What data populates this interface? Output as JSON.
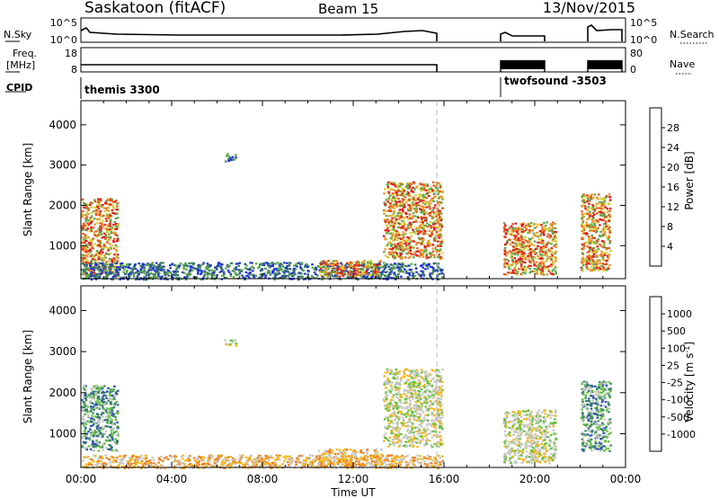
{
  "header": {
    "station": "Saskatoon (fitACF)",
    "beam": "Beam 15",
    "date": "13/Nov/2015"
  },
  "strip_nsky": {
    "label": "N.Sky",
    "right_label": "N.Search",
    "left_ticks": [
      "10^5",
      "10^0"
    ],
    "right_ticks": [
      "10^5",
      "10^0"
    ]
  },
  "strip_freq": {
    "label_line1": "Freq.",
    "label_line2": "[MHz]",
    "right_label": "Nave",
    "left_ticks": [
      "18",
      "8"
    ],
    "right_ticks": [
      "80",
      "0"
    ]
  },
  "cpid": {
    "label": "CPID",
    "modes": [
      {
        "name": "themis 3300",
        "start": 0.0
      },
      {
        "name": "twofsound -3503",
        "start": 18.6
      }
    ]
  },
  "chart_data": [
    {
      "type": "heatmap",
      "title": "",
      "xlabel": "",
      "ylabel": "Slant Range [km]",
      "ylim": [
        180,
        4600
      ],
      "yticks": [
        1000,
        2000,
        3000,
        4000
      ],
      "xlim": [
        0,
        24
      ],
      "colorbar": {
        "label": "Power [dB]",
        "ticks": [
          "4",
          "8",
          "12",
          "16",
          "20",
          "24",
          "28"
        ],
        "colors": [
          "#1c2fe0",
          "#2a4f9e",
          "#3e7f5e",
          "#5ca94a",
          "#d6cf35",
          "#ee9428",
          "#e05a1c",
          "#e01818"
        ]
      },
      "echo_regions": [
        {
          "t0": 0.0,
          "t1": 1.6,
          "r0": 300,
          "r1": 2200,
          "level": "high"
        },
        {
          "t0": 0.0,
          "t1": 15.9,
          "r0": 180,
          "r1": 600,
          "level": "low"
        },
        {
          "t0": 10.4,
          "t1": 13.2,
          "r0": 250,
          "r1": 650,
          "level": "high"
        },
        {
          "t0": 13.3,
          "t1": 15.9,
          "r0": 700,
          "r1": 2600,
          "level": "high"
        },
        {
          "t0": 6.3,
          "t1": 6.8,
          "r0": 3100,
          "r1": 3300,
          "level": "low"
        },
        {
          "t0": 18.6,
          "t1": 20.9,
          "r0": 300,
          "r1": 1600,
          "level": "high"
        },
        {
          "t0": 22.0,
          "t1": 23.3,
          "r0": 400,
          "r1": 2300,
          "level": "high"
        }
      ]
    },
    {
      "type": "heatmap",
      "title": "",
      "xlabel": "Time UT",
      "ylabel": "Slant Range [km]",
      "ylim": [
        180,
        4600
      ],
      "yticks": [
        1000,
        2000,
        3000,
        4000
      ],
      "xlim": [
        0,
        24
      ],
      "xticks": [
        "00:00",
        "04:00",
        "08:00",
        "12:00",
        "16:00",
        "20:00",
        "00:00"
      ],
      "colorbar": {
        "label": "Velocity [m s",
        "label_exponent": "-1",
        "label_close": "]",
        "ticks": [
          "1000",
          "500",
          "100",
          "25",
          "-25",
          "-100",
          "-500",
          "-1000"
        ],
        "colors": [
          "#2432c8",
          "#2f5aa8",
          "#3f8a60",
          "#62c23c",
          "#c8c8c4",
          "#f6b817",
          "#f08020",
          "#e03818",
          "#e01010"
        ]
      },
      "echo_regions": [
        {
          "t0": 0.0,
          "t1": 1.6,
          "r0": 600,
          "r1": 2200,
          "level": "positive"
        },
        {
          "t0": 0.0,
          "t1": 15.9,
          "r0": 180,
          "r1": 500,
          "level": "negative"
        },
        {
          "t0": 10.4,
          "t1": 13.2,
          "r0": 250,
          "r1": 650,
          "level": "negative"
        },
        {
          "t0": 13.3,
          "t1": 15.9,
          "r0": 700,
          "r1": 2600,
          "level": "near-zero"
        },
        {
          "t0": 6.3,
          "t1": 6.8,
          "r0": 3150,
          "r1": 3300,
          "level": "near-zero"
        },
        {
          "t0": 18.6,
          "t1": 20.9,
          "r0": 300,
          "r1": 1600,
          "level": "near-zero"
        },
        {
          "t0": 22.0,
          "t1": 23.3,
          "r0": 600,
          "r1": 2300,
          "level": "positive"
        }
      ]
    }
  ]
}
